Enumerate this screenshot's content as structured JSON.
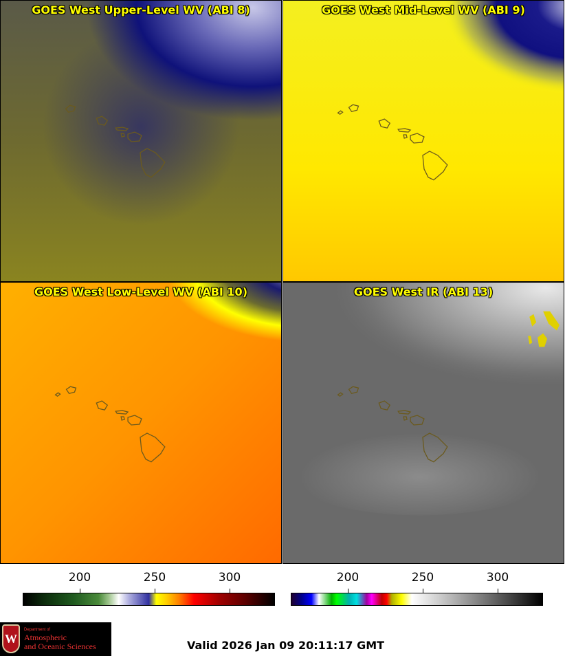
{
  "panels": [
    {
      "title": "GOES West Upper-Level WV (ABI 8)"
    },
    {
      "title": "GOES West Mid-Level WV (ABI 9)"
    },
    {
      "title": "GOES West Low-Level WV (ABI 10)"
    },
    {
      "title": "GOES West IR (ABI 13)"
    }
  ],
  "colorbars": {
    "left": {
      "ticks": [
        "200",
        "250",
        "300"
      ]
    },
    "right": {
      "ticks": [
        "200",
        "250",
        "300"
      ]
    }
  },
  "logo": {
    "department": "Department of",
    "name_line1": "Atmospheric",
    "name_line2": "and Oceanic Sciences",
    "shield_letter": "W"
  },
  "valid_time": "Valid 2026 Jan 09 20:11:17 GMT",
  "colors": {
    "title_text": "#ffff00",
    "coastline": "#6b5a1e"
  }
}
